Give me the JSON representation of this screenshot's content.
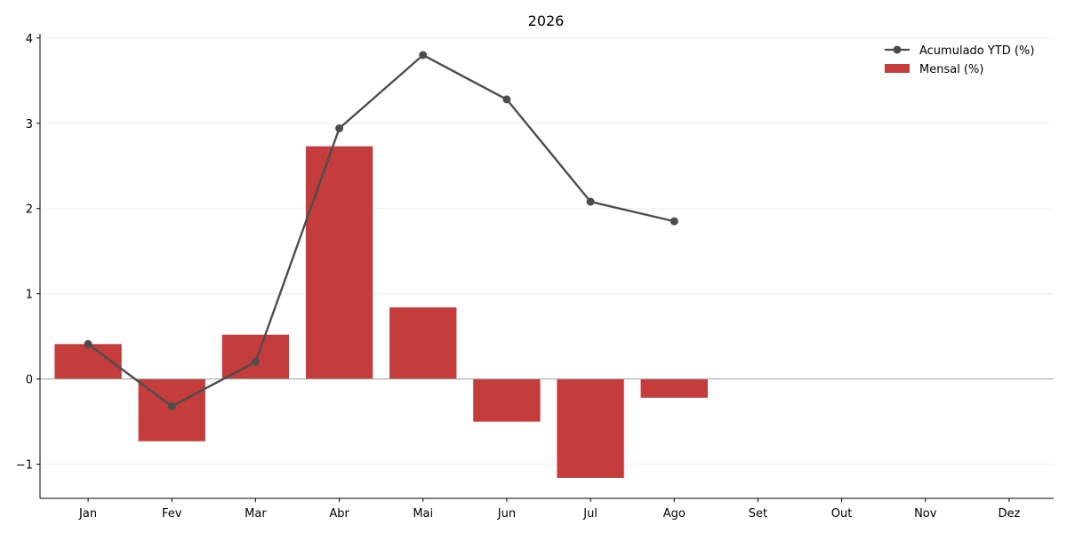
{
  "chart_data": {
    "type": "bar",
    "title": "2026",
    "xlabel": "",
    "ylabel": "",
    "categories": [
      "Jan",
      "Fev",
      "Mar",
      "Abr",
      "Mai",
      "Jun",
      "Jul",
      "Ago",
      "Set",
      "Out",
      "Nov",
      "Dez"
    ],
    "yticks": [
      -1,
      0,
      1,
      2,
      3,
      4
    ],
    "ytick_labels": [
      "−1",
      "0",
      "1",
      "2",
      "3",
      "4"
    ],
    "ylim": [
      -1.4,
      4.05
    ],
    "grid": true,
    "legend_position": "top-right",
    "series": [
      {
        "name": "Mensal (%)",
        "type": "bar",
        "color": "#c43c3c",
        "values": [
          0.41,
          -0.73,
          0.52,
          2.73,
          0.84,
          -0.5,
          -1.16,
          -0.22,
          null,
          null,
          null,
          null
        ]
      },
      {
        "name": "Acumulado YTD (%)",
        "type": "line",
        "color": "#4d4d4d",
        "marker": "circle",
        "values": [
          0.41,
          -0.32,
          0.2,
          2.94,
          3.8,
          3.28,
          2.08,
          1.85,
          null,
          null,
          null,
          null
        ]
      }
    ]
  }
}
